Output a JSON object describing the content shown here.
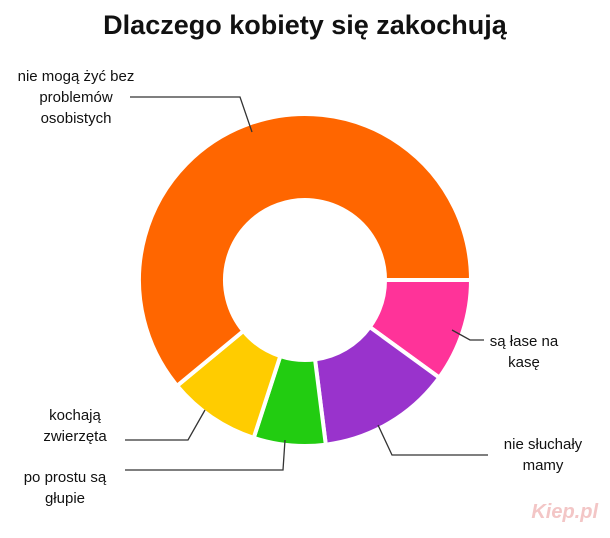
{
  "chart_data": {
    "type": "donut",
    "title": "Dlaczego kobiety się zakochują",
    "categories": [
      "nie mogą żyć bez problemów osobistych",
      "kochają zwierzęta",
      "po prostu są głupie",
      "nie słuchały mamy",
      "są łase na kasę"
    ],
    "values": [
      61,
      9,
      7,
      13,
      10
    ],
    "colors": [
      "#ff6600",
      "#ffcc00",
      "#22cc11",
      "#9933cc",
      "#ff3399"
    ],
    "watermark": "Kiep.pl"
  }
}
